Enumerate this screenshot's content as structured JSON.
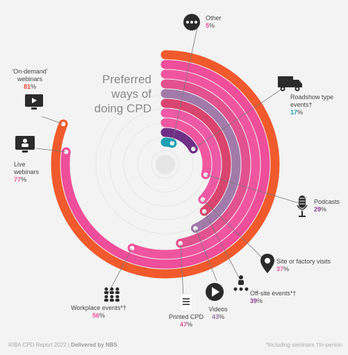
{
  "title": "Preferred ways of doing CPD",
  "footer": {
    "report": "RIBA CPD Report 2022",
    "separator": "|",
    "delivered_by": "Delivered by NBS"
  },
  "footnote": "*Including seminars †In-person",
  "chart_data": {
    "type": "radial_bar",
    "title": "Preferred ways of doing CPD",
    "unit": "%",
    "max": 100,
    "categories": [
      {
        "name": "'On-demand' webinars",
        "value": 81,
        "color": "#f05a2c",
        "pct_color": "#e8412a",
        "icon": "monitor-play-icon"
      },
      {
        "name": "Live webinars",
        "value": 77,
        "color": "#ee4e9a",
        "pct_color": "#ee4e9a",
        "icon": "monitor-person-icon"
      },
      {
        "name": "Workplace events*†",
        "value": 56,
        "color": "#f0569f",
        "pct_color": "#ee4e9a",
        "icon": "group-icon"
      },
      {
        "name": "Printed CPD",
        "value": 47,
        "color": "#e2528f",
        "pct_color": "#e2528f",
        "icon": "document-icon"
      },
      {
        "name": "Videos",
        "value": 43,
        "color": "#a27aaa",
        "pct_color": "#9c72a6",
        "icon": "play-button-icon"
      },
      {
        "name": "Off-site events*†",
        "value": 39,
        "color": "#d9456e",
        "pct_color": "#8a3a8f",
        "icon": "presenter-icon"
      },
      {
        "name": "Site or factory visits",
        "value": 37,
        "color": "#ec5aa6",
        "pct_color": "#ec5aa6",
        "icon": "map-pin-icon"
      },
      {
        "name": "Podcasts",
        "value": 29,
        "color": "#f0579f",
        "pct_color": "#8a3a8f",
        "icon": "microphone-icon"
      },
      {
        "name": "Roadshow type events†",
        "value": 17,
        "color": "#6f2f86",
        "pct_color": "#1ba0b4",
        "icon": "truck-icon"
      },
      {
        "name": "Other",
        "value": 5,
        "color": "#1ba0b4",
        "pct_color": "#ee4e9a",
        "icon": "more-icon"
      }
    ]
  }
}
